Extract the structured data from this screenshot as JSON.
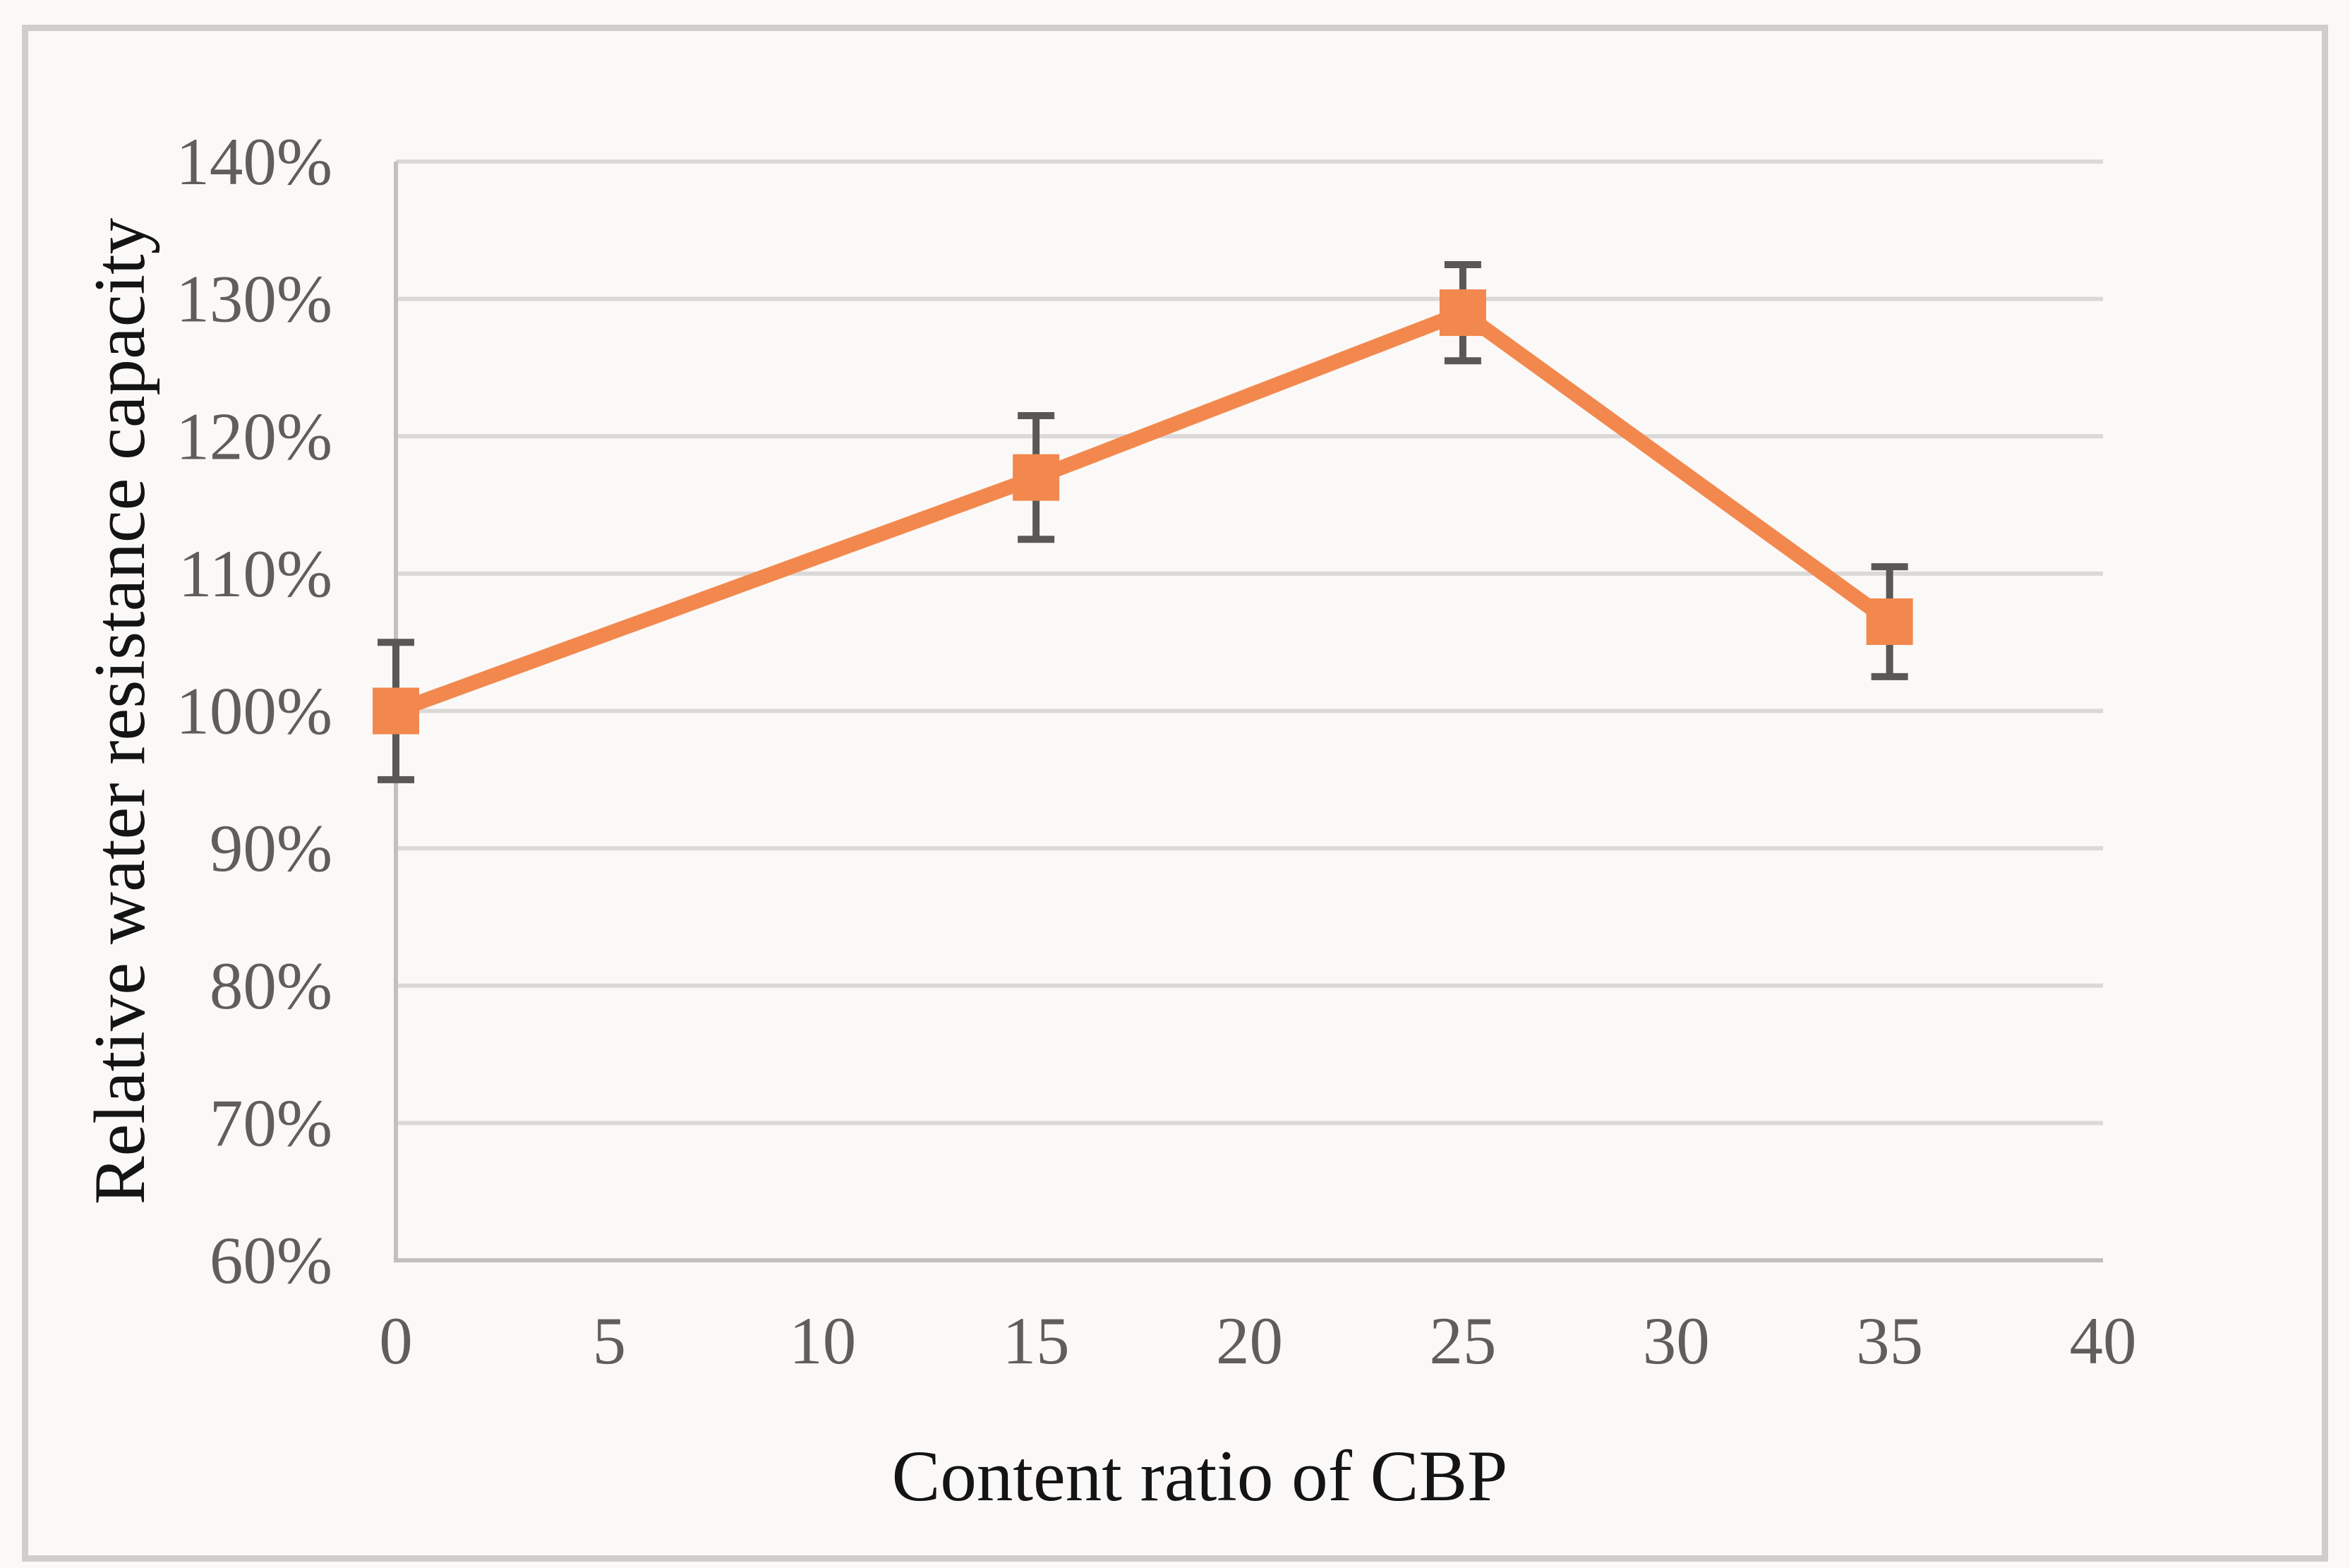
{
  "figure": {
    "background_color": "#fbf9f7",
    "border_color": "#d1cdcd"
  },
  "chart_data": {
    "type": "line",
    "title": "",
    "xlabel": "Content ratio of CBP",
    "ylabel": "Relative water resistance capacity",
    "x": [
      0,
      15,
      25,
      35
    ],
    "series": [
      {
        "name": "Relative water resistance capacity",
        "values": [
          100,
          117,
          129,
          106.5
        ],
        "error_plus": [
          5,
          4.5,
          3.5,
          4
        ],
        "error_minus": [
          5,
          4.5,
          3.5,
          4
        ]
      }
    ],
    "xlim": [
      0,
      40
    ],
    "ylim": [
      60,
      140
    ],
    "x_ticks": [
      0,
      5,
      10,
      15,
      20,
      25,
      30,
      35,
      40
    ],
    "x_tick_labels": [
      "0",
      "5",
      "10",
      "15",
      "20",
      "25",
      "30",
      "35",
      "40"
    ],
    "y_ticks": [
      60,
      70,
      80,
      90,
      100,
      110,
      120,
      130,
      140
    ],
    "y_tick_labels": [
      "60%",
      "70%",
      "80%",
      "90%",
      "100%",
      "110%",
      "120%",
      "130%",
      "140%"
    ],
    "grid": "horizontal",
    "legend": "none",
    "marker": "square",
    "colors": {
      "line": "#f2884e",
      "marker": "#f2884e",
      "error_bar": "#5a5757",
      "gridline": "#dbd8d8",
      "axis_line": "#c3bfbf",
      "tick_label": "#615d5d",
      "axis_title": "#141414"
    }
  }
}
